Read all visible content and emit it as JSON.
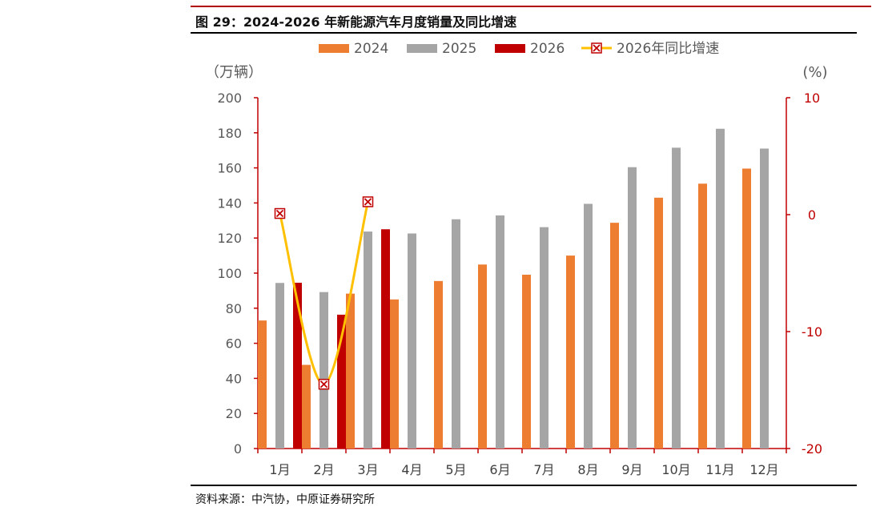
{
  "title": "图 29：2024-2026 年新能源汽车月度销量及同比增速",
  "source": "资料来源：中汽协，中原证券研究所",
  "chart_data": {
    "type": "bar",
    "categories": [
      "1月",
      "2月",
      "3月",
      "4月",
      "5月",
      "6月",
      "7月",
      "8月",
      "9月",
      "10月",
      "11月",
      "12月"
    ],
    "series": [
      {
        "name": "2024",
        "kind": "bar",
        "axis": "left",
        "color": "#ED7D31",
        "values": [
          73,
          47.7,
          88.3,
          85,
          95.5,
          104.9,
          99.1,
          110,
          128.7,
          143,
          151,
          159.6
        ]
      },
      {
        "name": "2025",
        "kind": "bar",
        "axis": "left",
        "color": "#A5A5A5",
        "values": [
          94.4,
          89.2,
          123.7,
          122.6,
          130.7,
          132.9,
          126.2,
          139.5,
          160.4,
          171.5,
          182.3,
          171
        ]
      },
      {
        "name": "2026",
        "kind": "bar",
        "axis": "left",
        "color": "#C00000",
        "values": [
          94.5,
          76.3,
          125,
          null,
          null,
          null,
          null,
          null,
          null,
          null,
          null,
          null
        ]
      },
      {
        "name": "2026年同比增速",
        "kind": "line",
        "axis": "right",
        "color": "#FFC000",
        "values": [
          0.1,
          -14.5,
          1.1,
          null,
          null,
          null,
          null,
          null,
          null,
          null,
          null,
          null
        ]
      }
    ],
    "yleft": {
      "label": "（万辆）",
      "lim": [
        0,
        200
      ],
      "ticks": [
        0,
        20,
        40,
        60,
        80,
        100,
        120,
        140,
        160,
        180,
        200
      ]
    },
    "yright": {
      "label": "(%)",
      "lim": [
        -20,
        10
      ],
      "ticks": [
        -20,
        -10,
        0,
        10
      ],
      "color": "#C00000"
    },
    "legend_position": "top",
    "grid": false
  }
}
